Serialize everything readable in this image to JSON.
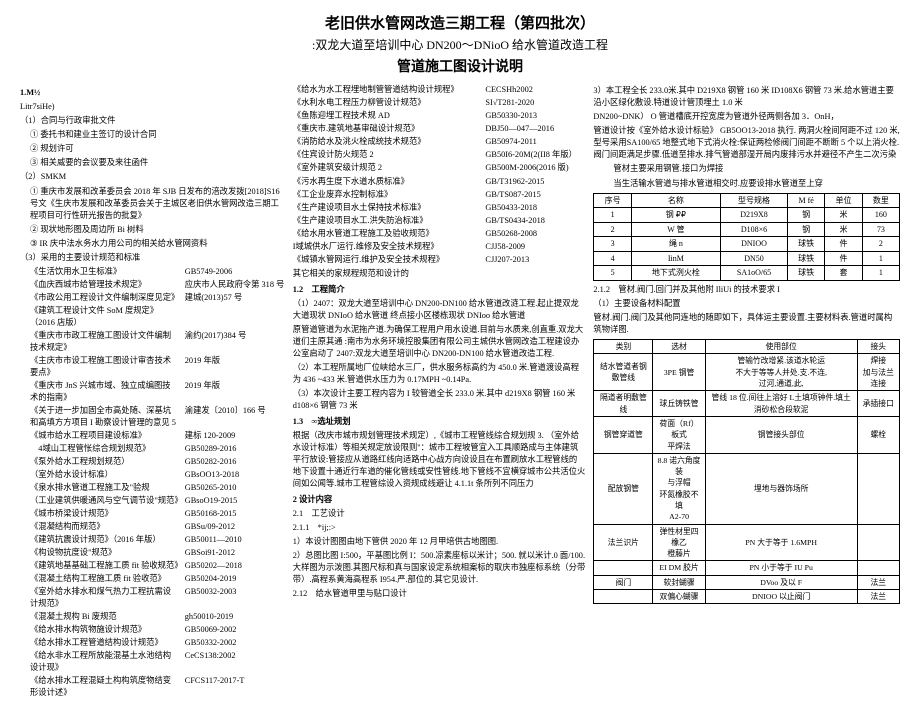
{
  "header": {
    "t1": "老旧供水管网改造三期工程（第四批次）",
    "t2": ":双龙大道至培训中心 DN200～DNioO 给水管道改造工程",
    "t3": "管道施工图设计说明"
  },
  "c1": {
    "s1": "1.M½",
    "s2": "Litr7siHe)",
    "h1": "（1）合同与行政审批文件",
    "i1": "① 委托书和建业主签订的设计合同",
    "i2": "② 规划许可",
    "i3": "③ 相关威要的会议要及来往函件",
    "h2": "（2）SMKM",
    "p1": "① 重庆市发展和改革委员会 2018 年 SJB 日发布的涪改发拨[2018]S16 号文《生庆市发展和改革委员会关于主城区老旧供水管网改造三期工程项目可行性研光报告的批复》",
    "p2": "② 现状地形图及周边所 Bi 树料",
    "p3": "③ IR 庆中法水务水力用公司的相关给水管网资料",
    "h3": "（3）采用的主要设计规范和标准",
    "rows1": [
      {
        "l": "《生活饮用水卫生标准》",
        "r": "GB5749-2006"
      },
      {
        "l": "《血庆西城市给管理技术规定》",
        "r": "应庆市人民政府令第 318 号"
      },
      {
        "l": "《市政公用工程设计文件编制深度见定》",
        "r": "建城(2013)57 号"
      },
      {
        "l": "《建筑工程设计文件 SoM 度规定》（2016 店版）",
        "r": ""
      },
      {
        "l": "《重庆市市政工程施工图设计文件编制技术规定》",
        "r": "渝约(2017)384 号"
      },
      {
        "l": "《主庆市市设工程施工图设计审杏技术要点》",
        "r": "2019 年版"
      },
      {
        "l": "《重庆市 JnS 兴城市域、独立成编图技术的指南》",
        "r": "2019 年版"
      },
      {
        "l": "《关于进一步加固全市高处随、深基坑和高填方方项目 I 勘察设计管理的意见 5",
        "r": "渝建发〔2010〕166 号"
      },
      {
        "l": "《城市给水工程项目建设标准》",
        "r": "建标 120-2009"
      },
      {
        "l": "　4域山工程管怅综合规划规范》",
        "r": "GB50289-2016"
      },
      {
        "l": "《泵外给水工程规划规范）",
        "r": "GB50282-2016"
      },
      {
        "l": "（室外给水设计标准）",
        "r": "GBsOO13-2018"
      },
      {
        "l": "《泉水排水管道工程施工及\"验规",
        "r": "GB50265-2010"
      },
      {
        "l": "（工业建筑供暖通风与空气调节设\"规范》",
        "r": "GBsoO19-2015"
      },
      {
        "l": "《城市桥梁设计规范》",
        "r": "GB50168-2015"
      },
      {
        "l": "《混凝结构而规范》",
        "r": "GBSu/09-2012"
      },
      {
        "l": "《建筑抗震设计规范》（2016 年版）",
        "r": "GB50011—2010"
      },
      {
        "l": "《构设物抗度设\"规范》",
        "r": "GBSoi91-2012"
      },
      {
        "l": "《建筑地基基础工程施工质 fit 验收规范》",
        "r": "GB50202—2018"
      },
      {
        "l": "《混凝土结构工程施工质 fit 验收范》",
        "r": "GB50204-2019"
      },
      {
        "l": "《室外给水排水和煤气热力工程抗需设计规范》",
        "r": "GB50032-2003"
      },
      {
        "l": "《混凝土规构 Bi 废规范",
        "r": "gh50010-2019"
      },
      {
        "l": "《给水排水构筑物施设计规范》",
        "r": "GB50069-2002"
      },
      {
        "l": "《给水排水工程管道结构设计规范》",
        "r": "GB50332-2002"
      },
      {
        "l": "《给水非水工程所放能混基土水池结构设计现》",
        "r": "CeCS138:2002"
      },
      {
        "l": "《给水排水工程混疑土构构筑度物结变形设计述》",
        "r": "CFCS117-2017-T"
      }
    ]
  },
  "c2": {
    "rows1": [
      {
        "l": "《给水为水工程埋地制管管道结构设计规程》",
        "r": "CECSHh2002"
      },
      {
        "l": "《水利水电工程压力柳管设计规范》",
        "r": "SI√T281-2020"
      },
      {
        "l": "《鱼陈迎埋工程技术规 AD",
        "r": "GB50330-2013"
      },
      {
        "l": "《重庆市.建筑地基审础设计规范》",
        "r": "DBJ50—047—2016"
      },
      {
        "l": "《消防给水及洮火栓成统技术规范》",
        "r": "GB50974-2011"
      },
      {
        "l": "《住宾设计防火规范 2",
        "r": "GB50I6-20M(2(II8 年版）"
      },
      {
        "l": "《室外建筑安级计规范 2",
        "r": "GB500M-2006(2016 版)"
      },
      {
        "l": "《污水再生度下水道水质标准》",
        "r": "GB/T31962-2015"
      },
      {
        "l": "《工企业废弃水控制标准》",
        "r": "GB/TS087-2015"
      },
      {
        "l": "《生产建设项目水土保持技术标准》",
        "r": "GB50433-2018"
      },
      {
        "l": "《生产建设项目水工.洪失防治标准》",
        "r": "GB/TS0434-2018"
      },
      {
        "l": "《给水用水管道工程施工及验收规范》",
        "r": "GB50268-2008"
      },
      {
        "l": "I域城供水厂运行.维修及安全技术规程》",
        "r": "CJJ58-2009"
      },
      {
        "l": "《城镇水管网运行.维护及安全技术规程》",
        "r": "CJJ207-2013"
      }
    ],
    "pfoot": "其它相关的家规程规范和设计的",
    "h12": "1.2　工程简介",
    "p12a": "（1）2407：双龙大道至培训中心 DN200-DN100 给水管道改涟工程.起止提双龙大道现状 DNIoO 给水管道 终点接小区楼栋现状 DNIoo 给水管道",
    "p12b": "原管道管道为水泥拖产道.为确保工程用户用水设道.目前与水质来,创直重.双龙大道们主原其通 :南市为水务环境控股集团有限公司主城供水管网改造工程建设办公室启动了 2407:双龙大道至培训中心 DN200-DN100 给水管道改造工程.",
    "p12c": "（2）本工程所属地厂位峡给水三厂，供水服务标高约为 450.0 米.管道渡设高程为 436 ~433 米.管道供水压力为 0.17MPH ~0.14Pa.",
    "p12d": "（3）本次设计主要工程内容为 I 较管道全长 233.0 米.其中 d219X8 钢管 160 米 d108×6 钢管 73 米",
    "h13": "1.3　∞选址规划",
    "p13a": "根据（改庆市城市规划管理技术规定）,《城市工程管线综合规划规 3. （室外给水设计标准）等相关规定放设限则\"：城市工程坡管宜入工具顺路成与主体建筑平行放设:管接应从道路红线向适路中心战方向设设且在布置刷放水工程管线的地下设置十通近行车道的催化管线或安性管线.地下管线不宜横穿城市公共活位火间如公闻等.城市工程管综设入资规成线避让 4.1.1t 条所列不同压力",
    "h2": "2 设计内容",
    "h21": "2.1　工艺设计",
    "h211": "2.1.1　*ij;:>",
    "p21a": "1）本设计图图由地下管供 2020 年 12 月甲培供古地图图.",
    "p21b": "2）总图比图 I:500，平基图比例 I：500.凉素座标以米计；500. 就以米计.0 面/100.大样图为示泼图.其图尺标和真与国家设定系统相案标的取庆市独座标系统（分带带）.高程系黄海高程系 I954.严.部位的.其它见设计.",
    "h212": "2.12　给水管道甲里与贴口设计"
  },
  "c3": {
    "p1": "3）本工程全长 233.0米.其中 D219X8 钢管 160 米 ID108X6 钢管 73 米.给水管道主要沿小区绿化敷设.特道设计管顶埋土 1.0 米",
    "p2": "DN200~DNK） O 管道槽底开控宽度为管道外径两侧各加 3．OnH，",
    "p3": "管道设计按《室外给水设计标验》 GB5OO13-2018 执行. 两洞火栓间阿距不过 120 米,型号采用SA100/65 地整式地下式消火栓:保证两检修阀门间距不断断 5 个以上消火栓.阀门间距满足步骤.低道至排水.排气管道部湿开局内废排污水并避径不产生二次污染",
    "p4": "管材主要采用钢管.接口为焊接",
    "p5": "当生活输水管道与排水管道相交时.应要设排水管道至上穿",
    "tbl1": {
      "head": [
        "序号",
        "名称",
        "型号规格",
        "M fé",
        "单位",
        "数里"
      ],
      "rows": [
        [
          "1",
          "钢 ₽₽",
          "D219X8",
          "钢",
          "米",
          "160"
        ],
        [
          "2",
          "W 管",
          "D108×6",
          "钢",
          "米",
          "73"
        ],
        [
          "3",
          "绳 n",
          "DNIOO",
          "球铁",
          "件",
          "2"
        ],
        [
          "4",
          "IinM",
          "DN50",
          "球铁",
          "件",
          "1"
        ],
        [
          "5",
          "地下式洌火栓",
          "SA1oO/65",
          "球铁",
          "套",
          "1"
        ]
      ]
    },
    "h212": "2.1.2　管材.阀门.回门并及其他附 IliUi 的技术要求 I",
    "h1": "（1）主要设备材料配置",
    "p6": "管材.阀门.阀门及其他同连地的随即如下，具体运主要设置.主要材料表.管道时属构筑物详图.",
    "tbl2": {
      "head": [
        "类别",
        "选材",
        "使用部位",
        "接头"
      ],
      "rows": [
        [
          "结水管道者钢敷管线",
          "3PE 钢管",
          "管输竹改增紧.该道水轮运\n不大于等等人并处.支.不连,\n过河,通道,此,",
          "焊接\n加与法兰连接"
        ],
        [
          "隔道者明敷管线",
          "球丘铸铁管",
          "管线 18 位.间往上溶好 L土填项钟件.填土消砂松合段软泥",
          "承插接口"
        ],
        [
          "钢管穿道管",
          "荷面（Rf）板式\n平焊法",
          "钢管接头部位",
          "螺栓"
        ],
        [
          "配放钢管",
          "8.8 诺六角度装\n与浮帽\n环氮橡胶不填\nA2-70",
          "埋地与器饰场所",
          ""
        ],
        [
          "法兰识片",
          "弹性材里四橡乙\n橙藤片",
          "PN 大于等于 1.6MPH",
          ""
        ],
        [
          "",
          "EI DM 胶片",
          "PN 小于等于 IU Pu",
          ""
        ],
        [
          "阀门",
          "软封蝴骤",
          "DVoo 及以 F",
          "法兰"
        ],
        [
          "",
          "双偏心蝴骤",
          "DNIOO 以止阀门",
          "法兰"
        ]
      ]
    }
  }
}
